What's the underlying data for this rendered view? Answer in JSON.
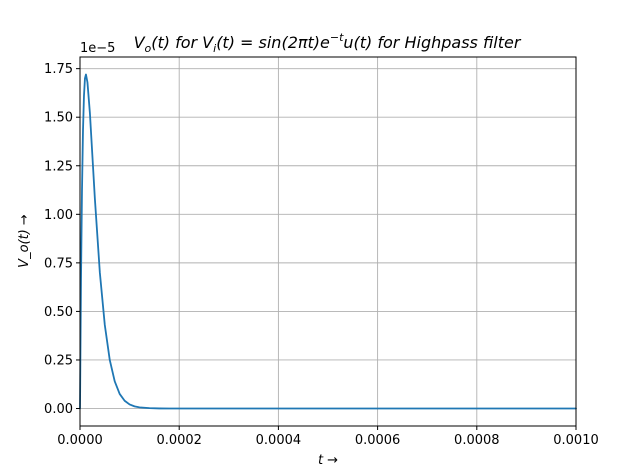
{
  "chart_data": {
    "type": "line",
    "title_parts": [
      "V",
      "o",
      "(t) for V",
      "i",
      "(t) = sin(2πt)e",
      "−t",
      "u(t) for Highpass filter"
    ],
    "xlabel": "t →",
    "ylabel": "V_o(t) →",
    "y_offset_label": "1e−5",
    "xlim": [
      0.0,
      0.001
    ],
    "ylim": [
      -9e-07,
      1.81e-05
    ],
    "xticks": [
      {
        "value": 0.0,
        "label": "0.0000"
      },
      {
        "value": 0.0002,
        "label": "0.0002"
      },
      {
        "value": 0.0004,
        "label": "0.0004"
      },
      {
        "value": 0.0006,
        "label": "0.0006"
      },
      {
        "value": 0.0008,
        "label": "0.0008"
      },
      {
        "value": 0.001,
        "label": "0.0010"
      }
    ],
    "yticks": [
      {
        "value": 0.0,
        "label": "0.00"
      },
      {
        "value": 2.5e-06,
        "label": "0.25"
      },
      {
        "value": 5e-06,
        "label": "0.50"
      },
      {
        "value": 7.5e-06,
        "label": "0.75"
      },
      {
        "value": 1e-05,
        "label": "1.00"
      },
      {
        "value": 1.25e-05,
        "label": "1.25"
      },
      {
        "value": 1.5e-05,
        "label": "1.50"
      },
      {
        "value": 1.75e-05,
        "label": "1.75"
      }
    ],
    "grid": true,
    "series": [
      {
        "color": "#1f77b4",
        "x": [
          0.0,
          2e-06,
          4e-06,
          6e-06,
          8e-06,
          1e-05,
          1.2e-05,
          1.5e-05,
          2e-05,
          2.5e-05,
          3e-05,
          4e-05,
          5e-05,
          6e-05,
          7e-05,
          8e-05,
          9e-05,
          0.0001,
          0.00011,
          0.00012,
          0.00014,
          0.00016,
          0.00018,
          0.0002,
          0.00022,
          0.00025,
          0.0003,
          0.00035,
          0.0004,
          0.0005,
          0.0006,
          0.0007,
          0.0008,
          0.0009,
          0.001
        ],
        "y": [
          0.0,
          6.6e-06,
          1.12e-05,
          1.43e-05,
          1.61e-05,
          1.7e-05,
          1.72e-05,
          1.68e-05,
          1.52e-05,
          1.3e-05,
          1.08e-05,
          7e-06,
          4.3e-06,
          2.5e-06,
          1.4e-06,
          7.5e-07,
          4e-07,
          2.1e-07,
          1.1e-07,
          6e-08,
          2e-08,
          5e-09,
          1e-09,
          0.0,
          0.0,
          0.0,
          0.0,
          0.0,
          0.0,
          0.0,
          0.0,
          0.0,
          0.0,
          0.0,
          0.0
        ]
      }
    ]
  }
}
